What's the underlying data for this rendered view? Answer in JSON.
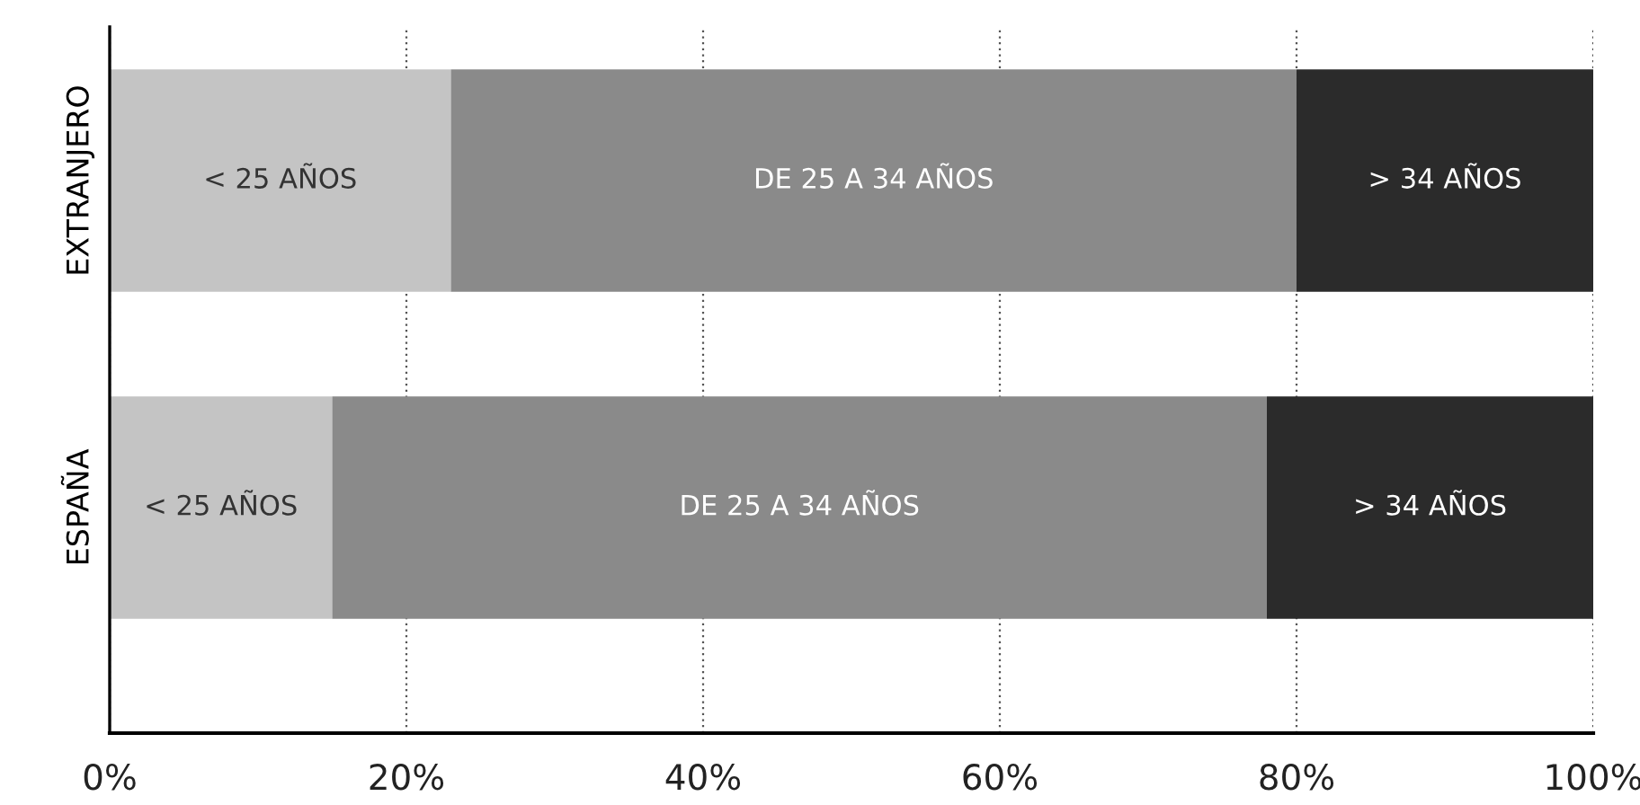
{
  "chart_data": {
    "type": "bar",
    "orientation": "horizontal",
    "stacked": true,
    "categories": [
      "EXTRANJERO",
      "ESPAÑA"
    ],
    "series": [
      {
        "name": "< 25 AÑOS",
        "color": "#c4c4c4",
        "values": [
          23,
          15
        ]
      },
      {
        "name": "DE 25 A 34 AÑOS",
        "color": "#8a8a8a",
        "values": [
          57,
          63
        ]
      },
      {
        "name": "> 34 AÑOS",
        "color": "#2b2b2b",
        "values": [
          20,
          22
        ]
      }
    ],
    "xlim": [
      0,
      100
    ],
    "xticks": [
      {
        "value": 0,
        "label": "0%"
      },
      {
        "value": 20,
        "label": "20%"
      },
      {
        "value": 40,
        "label": "40%"
      },
      {
        "value": 60,
        "label": "60%"
      },
      {
        "value": 80,
        "label": "80%"
      },
      {
        "value": 100,
        "label": "100%"
      }
    ],
    "grid": "x",
    "legend": false
  }
}
